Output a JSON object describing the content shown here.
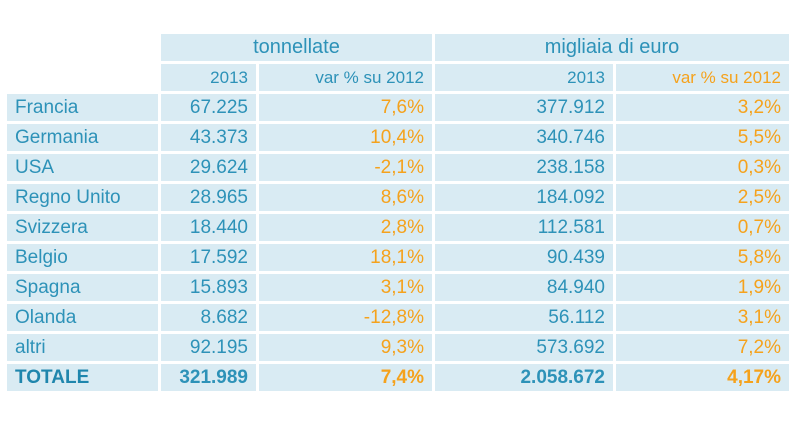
{
  "groups": {
    "tonnes": "tonnellate",
    "euro": "migliaia di euro"
  },
  "subheaders": {
    "year": "2013",
    "var": "var % su 2012"
  },
  "rows": [
    {
      "country": "Francia",
      "t": "67.225",
      "tv": "7,6%",
      "e": "377.912",
      "ev": "3,2%"
    },
    {
      "country": "Germania",
      "t": "43.373",
      "tv": "10,4%",
      "e": "340.746",
      "ev": "5,5%"
    },
    {
      "country": "USA",
      "t": "29.624",
      "tv": "-2,1%",
      "e": "238.158",
      "ev": "0,3%"
    },
    {
      "country": "Regno Unito",
      "t": "28.965",
      "tv": "8,6%",
      "e": "184.092",
      "ev": "2,5%"
    },
    {
      "country": "Svizzera",
      "t": "18.440",
      "tv": "2,8%",
      "e": "112.581",
      "ev": "0,7%"
    },
    {
      "country": "Belgio",
      "t": "17.592",
      "tv": "18,1%",
      "e": "90.439",
      "ev": "5,8%"
    },
    {
      "country": "Spagna",
      "t": "15.893",
      "tv": "3,1%",
      "e": "84.940",
      "ev": "1,9%"
    },
    {
      "country": "Olanda",
      "t": "8.682",
      "tv": "-12,8%",
      "e": "56.112",
      "ev": "3,1%"
    },
    {
      "country": "altri",
      "t": "92.195",
      "tv": "9,3%",
      "e": "573.692",
      "ev": "7,2%"
    }
  ],
  "total": {
    "country": "TOTALE",
    "t": "321.989",
    "tv": "7,4%",
    "e": "2.058.672",
    "ev": "4,17%"
  },
  "colors": {
    "cell_bg": "#d9ebf3",
    "blue_text": "#2d92b8",
    "orange_text": "#f5a21c"
  }
}
